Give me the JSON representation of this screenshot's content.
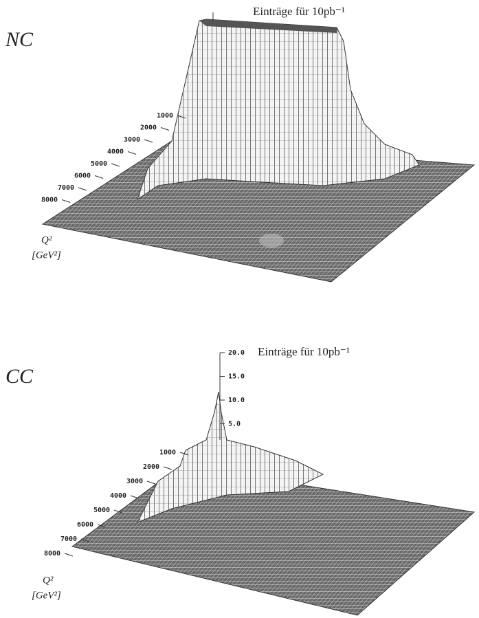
{
  "panels": [
    {
      "label": "NC",
      "legend": "Einträge für 10pb⁻¹",
      "axis_label": "Q²",
      "axis_unit": "[GeV²]",
      "depth_ticks": [
        "1000",
        "2000",
        "3000",
        "4000",
        "5000",
        "6000",
        "7000",
        "8000"
      ]
    },
    {
      "label": "CC",
      "legend": "Einträge für 10pb⁻¹",
      "axis_label": "Q²",
      "axis_unit": "[GeV²]",
      "depth_ticks": [
        "1000",
        "2000",
        "3000",
        "4000",
        "5000",
        "6000",
        "7000",
        "8000"
      ],
      "z_ticks": [
        "20.0",
        "15.0",
        "10.0",
        "5.0"
      ]
    }
  ]
}
